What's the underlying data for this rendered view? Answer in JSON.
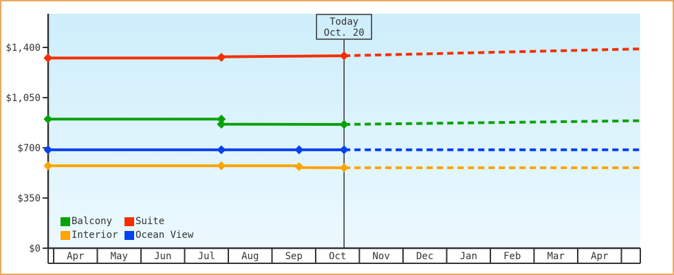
{
  "window": {
    "border_color": "#e9a75c",
    "background": "#ffffff"
  },
  "chart_data": {
    "type": "line",
    "description_of_x_unit": "calendar months, 0 = start of Apr tick cell",
    "months": [
      "Apr",
      "May",
      "Jun",
      "Jul",
      "Aug",
      "Sep",
      "Oct",
      "Nov",
      "Dec",
      "Jan",
      "Feb",
      "Mar",
      "Apr"
    ],
    "y_ticks": [
      {
        "value": 0,
        "label": "$0"
      },
      {
        "value": 350,
        "label": "$350"
      },
      {
        "value": 700,
        "label": "$700"
      },
      {
        "value": 1050,
        "label": "$1,050"
      },
      {
        "value": 1400,
        "label": "$1,400"
      }
    ],
    "y_axis_top_value": 1635,
    "x_start": -0.13,
    "x_end": 13.43,
    "today": {
      "x": 6.65,
      "line1": "Today",
      "line2": "Oct. 20"
    },
    "series": [
      {
        "name": "Suite",
        "color": "#f52e02",
        "solid": [
          [
            -0.13,
            1326
          ],
          [
            3.84,
            1326
          ],
          [
            3.84,
            1335
          ],
          [
            6.65,
            1342
          ]
        ],
        "markers": [
          [
            -0.13,
            1326
          ],
          [
            3.84,
            1331
          ],
          [
            6.65,
            1342
          ]
        ],
        "dashed": [
          [
            6.65,
            1342
          ],
          [
            13.43,
            1390
          ]
        ]
      },
      {
        "name": "Balcony",
        "color": "#09a109",
        "solid": [
          [
            -0.13,
            900
          ],
          [
            3.84,
            900
          ],
          [
            3.84,
            865
          ],
          [
            6.65,
            863
          ]
        ],
        "markers": [
          [
            -0.13,
            900
          ],
          [
            3.84,
            900
          ],
          [
            3.84,
            865
          ],
          [
            6.65,
            863
          ]
        ],
        "dashed": [
          [
            6.65,
            863
          ],
          [
            13.43,
            889
          ]
        ]
      },
      {
        "name": "Ocean View",
        "color": "#0541ef",
        "solid": [
          [
            -0.13,
            686
          ],
          [
            6.65,
            686
          ]
        ],
        "markers": [
          [
            -0.13,
            686
          ],
          [
            3.84,
            686
          ],
          [
            5.62,
            686
          ],
          [
            6.65,
            686
          ]
        ],
        "dashed": [
          [
            6.65,
            686
          ],
          [
            13.43,
            686
          ]
        ]
      },
      {
        "name": "Interior",
        "color": "#ffa405",
        "solid": [
          [
            -0.13,
            575
          ],
          [
            5.62,
            575
          ],
          [
            5.62,
            562
          ],
          [
            6.65,
            561
          ]
        ],
        "markers": [
          [
            -0.13,
            575
          ],
          [
            3.84,
            575
          ],
          [
            5.62,
            569
          ],
          [
            6.65,
            561
          ]
        ],
        "dashed": [
          [
            6.65,
            561
          ],
          [
            13.43,
            561
          ]
        ]
      }
    ],
    "legend_items": [
      {
        "label": "Balcony",
        "color": "#09a109"
      },
      {
        "label": "Suite",
        "color": "#f52e02"
      },
      {
        "label": "Interior",
        "color": "#ffa405"
      },
      {
        "label": "Ocean View",
        "color": "#0541ef"
      }
    ],
    "legend_position": "bottom-left-inside",
    "grid": "off",
    "colors": {
      "axis": "#333333",
      "text": "#333333",
      "plot_bg_top": "#cdeefb",
      "plot_bg_bottom": "#ecf9fe",
      "today_box_bg": "#cfeefb",
      "band_bg": "#ffffff",
      "border": "#e9a75c"
    }
  }
}
